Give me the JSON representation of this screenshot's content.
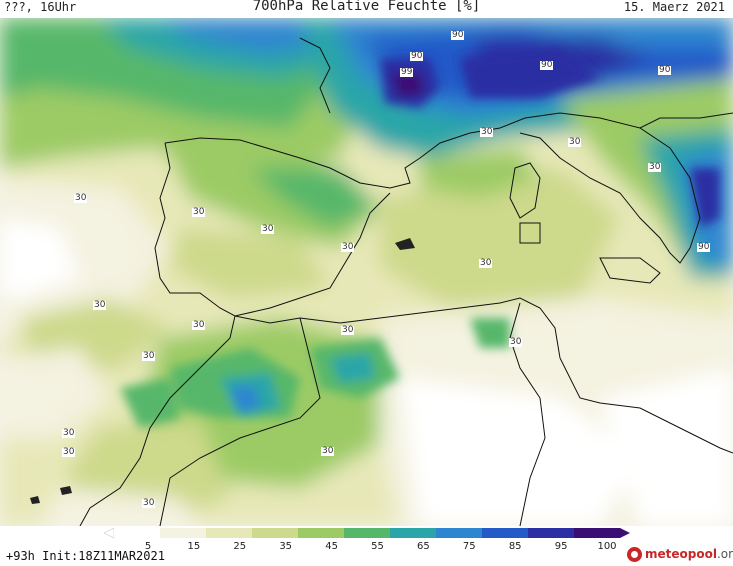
{
  "header": {
    "left": "???, 16Uhr",
    "title": "700hPa Relative Feuchte [%]",
    "date": "15. Maerz 2021"
  },
  "footer": {
    "run": "+93h Init:18Z11MAR2021",
    "brand_main": "meteopool",
    "brand_suffix": ".org"
  },
  "colorbar": {
    "ticks": [
      "5",
      "15",
      "25",
      "35",
      "45",
      "55",
      "65",
      "75",
      "85",
      "95",
      "100"
    ],
    "colors": [
      "#ffffff",
      "#f4f2e0",
      "#e7e8b8",
      "#cdd98b",
      "#9ccb65",
      "#56b76a",
      "#2aa6a8",
      "#2e86d0",
      "#2459c8",
      "#2b2fa3",
      "#3b0e74"
    ]
  },
  "contour_labels": [
    "90",
    "90",
    "99",
    "90",
    "90",
    "30",
    "30",
    "30",
    "30",
    "90",
    "30",
    "30",
    "30",
    "30",
    "30",
    "30",
    "30",
    "30",
    "30",
    "30",
    "30",
    "30",
    "30"
  ],
  "icons": {
    "logo": "meteopool-logo"
  }
}
